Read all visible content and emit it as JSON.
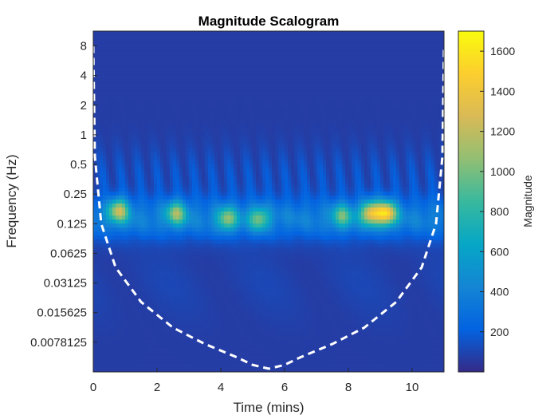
{
  "chart_data": {
    "type": "heatmap",
    "title": "Magnitude Scalogram",
    "xlabel": "Time (mins)",
    "ylabel": "Frequency (Hz)",
    "xlim": [
      0,
      11
    ],
    "x_ticks": [
      0,
      2,
      4,
      6,
      8,
      10
    ],
    "x_tick_labels": [
      "0",
      "2",
      "4",
      "6",
      "8",
      "10"
    ],
    "y_scale": "log2",
    "ylim": [
      0.0039,
      11.3
    ],
    "y_ticks": [
      8,
      4,
      2,
      1,
      0.5,
      0.25,
      0.125,
      0.0625,
      0.03125,
      0.015625,
      0.0078125
    ],
    "y_tick_labels": [
      "8",
      "4",
      "2",
      "1",
      "0.5",
      "0.25",
      "0.125",
      "0.0625",
      "0.03125",
      "0.015625",
      "0.0078125"
    ],
    "grid": false,
    "colormap": "parula",
    "colorbar": {
      "label": "Magnitude",
      "range": [
        0,
        1700
      ],
      "ticks": [
        200,
        400,
        600,
        800,
        1000,
        1200,
        1400,
        1600
      ],
      "tick_labels": [
        "200",
        "400",
        "600",
        "800",
        "1000",
        "1200",
        "1400",
        "1600"
      ]
    },
    "cone_of_influence": {
      "style": "dashed",
      "color": "#ffffff",
      "points": [
        {
          "t": 0.0,
          "f": 8.0
        },
        {
          "t": 0.05,
          "f": 0.6
        },
        {
          "t": 0.25,
          "f": 0.125
        },
        {
          "t": 0.7,
          "f": 0.045
        },
        {
          "t": 1.5,
          "f": 0.02
        },
        {
          "t": 2.5,
          "f": 0.011
        },
        {
          "t": 3.5,
          "f": 0.0075
        },
        {
          "t": 4.5,
          "f": 0.0055
        },
        {
          "t": 5.0,
          "f": 0.0046
        },
        {
          "t": 5.5,
          "f": 0.0042
        },
        {
          "t": 6.0,
          "f": 0.0046
        },
        {
          "t": 6.5,
          "f": 0.0055
        },
        {
          "t": 7.5,
          "f": 0.0075
        },
        {
          "t": 8.5,
          "f": 0.011
        },
        {
          "t": 9.5,
          "f": 0.02
        },
        {
          "t": 10.3,
          "f": 0.045
        },
        {
          "t": 10.75,
          "f": 0.125
        },
        {
          "t": 10.95,
          "f": 0.6
        },
        {
          "t": 11.0,
          "f": 8.0
        }
      ]
    },
    "energy_band": {
      "description_free": true,
      "freq_center": 0.14,
      "peaks": [
        {
          "t": 0.8,
          "f": 0.17,
          "magnitude": 1300
        },
        {
          "t": 2.6,
          "f": 0.16,
          "magnitude": 1150
        },
        {
          "t": 4.2,
          "f": 0.14,
          "magnitude": 1100
        },
        {
          "t": 5.2,
          "f": 0.14,
          "magnitude": 1050
        },
        {
          "t": 7.8,
          "f": 0.15,
          "magnitude": 1000
        },
        {
          "t": 8.7,
          "f": 0.16,
          "magnitude": 1400
        },
        {
          "t": 9.2,
          "f": 0.16,
          "magnitude": 1550
        }
      ]
    }
  }
}
